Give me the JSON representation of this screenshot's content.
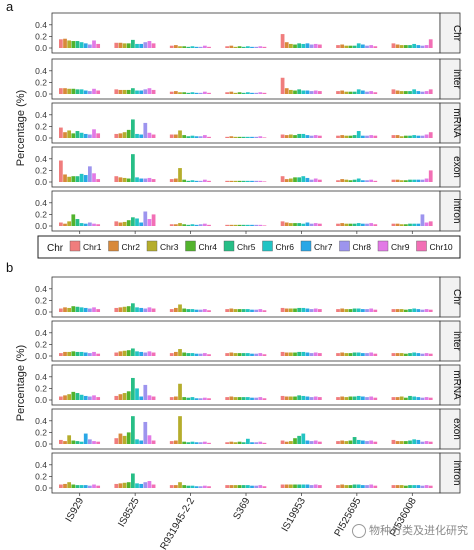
{
  "chart_data": [
    {
      "panel_label": "a",
      "type": "bar",
      "ylabel": "Percentage (%)",
      "yticks": [
        "0.0",
        "0.2",
        "0.4"
      ],
      "ylim": [
        0,
        0.5
      ],
      "categories": [
        "IS929",
        "IS8525",
        "R931945-2-2",
        "S369",
        "IS19953",
        "PI525695",
        "PI536008"
      ],
      "facets": [
        "Chr",
        "inter",
        "mRNA",
        "exon",
        "intron"
      ],
      "series_names": [
        "Chr1",
        "Chr2",
        "Chr3",
        "Chr4",
        "Chr5",
        "Chr6",
        "Chr7",
        "Chr8",
        "Chr9",
        "Chr10"
      ],
      "legend_title": "Chr",
      "legend_position": "bottom",
      "data": {
        "Chr": [
          [
            0.15,
            0.16,
            0.13,
            0.12,
            0.12,
            0.1,
            0.08,
            0.06,
            0.13,
            0.07
          ],
          [
            0.09,
            0.09,
            0.08,
            0.08,
            0.14,
            0.07,
            0.07,
            0.1,
            0.12,
            0.08
          ],
          [
            0.04,
            0.05,
            0.03,
            0.03,
            0.02,
            0.03,
            0.02,
            0.02,
            0.04,
            0.02
          ],
          [
            0.03,
            0.04,
            0.02,
            0.03,
            0.02,
            0.03,
            0.02,
            0.02,
            0.03,
            0.02
          ],
          [
            0.24,
            0.1,
            0.07,
            0.06,
            0.08,
            0.07,
            0.08,
            0.06,
            0.07,
            0.06
          ],
          [
            0.05,
            0.06,
            0.04,
            0.04,
            0.04,
            0.08,
            0.06,
            0.04,
            0.05,
            0.03
          ],
          [
            0.08,
            0.06,
            0.05,
            0.05,
            0.05,
            0.07,
            0.05,
            0.04,
            0.05,
            0.15
          ]
        ],
        "inter": [
          [
            0.1,
            0.1,
            0.09,
            0.09,
            0.08,
            0.08,
            0.06,
            0.05,
            0.09,
            0.06
          ],
          [
            0.08,
            0.07,
            0.07,
            0.07,
            0.1,
            0.06,
            0.06,
            0.08,
            0.1,
            0.07
          ],
          [
            0.04,
            0.05,
            0.03,
            0.03,
            0.02,
            0.03,
            0.02,
            0.02,
            0.04,
            0.02
          ],
          [
            0.03,
            0.04,
            0.02,
            0.03,
            0.02,
            0.03,
            0.02,
            0.02,
            0.03,
            0.02
          ],
          [
            0.28,
            0.1,
            0.07,
            0.06,
            0.08,
            0.06,
            0.06,
            0.05,
            0.06,
            0.05
          ],
          [
            0.05,
            0.06,
            0.04,
            0.04,
            0.04,
            0.08,
            0.06,
            0.04,
            0.05,
            0.03
          ],
          [
            0.08,
            0.06,
            0.05,
            0.05,
            0.05,
            0.08,
            0.05,
            0.04,
            0.05,
            0.08
          ]
        ],
        "mRNA": [
          [
            0.18,
            0.1,
            0.13,
            0.08,
            0.12,
            0.09,
            0.07,
            0.06,
            0.15,
            0.08
          ],
          [
            0.07,
            0.08,
            0.1,
            0.14,
            0.32,
            0.07,
            0.06,
            0.26,
            0.09,
            0.06
          ],
          [
            0.06,
            0.06,
            0.13,
            0.05,
            0.03,
            0.04,
            0.03,
            0.03,
            0.05,
            0.02
          ],
          [
            0.02,
            0.03,
            0.02,
            0.02,
            0.02,
            0.02,
            0.02,
            0.02,
            0.03,
            0.01
          ],
          [
            0.06,
            0.05,
            0.06,
            0.05,
            0.07,
            0.07,
            0.05,
            0.04,
            0.05,
            0.04
          ],
          [
            0.04,
            0.05,
            0.04,
            0.04,
            0.05,
            0.12,
            0.04,
            0.04,
            0.05,
            0.04
          ],
          [
            0.05,
            0.05,
            0.03,
            0.04,
            0.04,
            0.05,
            0.04,
            0.04,
            0.06,
            0.1
          ]
        ],
        "exon": [
          [
            0.37,
            0.13,
            0.09,
            0.1,
            0.1,
            0.14,
            0.12,
            0.27,
            0.15,
            0.05
          ],
          [
            0.1,
            0.08,
            0.07,
            0.06,
            0.48,
            0.08,
            0.06,
            0.06,
            0.07,
            0.05
          ],
          [
            0.05,
            0.06,
            0.24,
            0.04,
            0.02,
            0.03,
            0.02,
            0.02,
            0.04,
            0.02
          ],
          [
            0.02,
            0.02,
            0.02,
            0.02,
            0.02,
            0.02,
            0.02,
            0.02,
            0.02,
            0.01
          ],
          [
            0.1,
            0.05,
            0.06,
            0.08,
            0.08,
            0.1,
            0.07,
            0.04,
            0.06,
            0.04
          ],
          [
            0.03,
            0.05,
            0.04,
            0.03,
            0.04,
            0.06,
            0.03,
            0.03,
            0.04,
            0.02
          ],
          [
            0.04,
            0.04,
            0.03,
            0.03,
            0.04,
            0.04,
            0.04,
            0.04,
            0.06,
            0.2
          ]
        ],
        "intron": [
          [
            0.06,
            0.04,
            0.08,
            0.2,
            0.12,
            0.05,
            0.04,
            0.06,
            0.04,
            0.03
          ],
          [
            0.08,
            0.06,
            0.07,
            0.1,
            0.15,
            0.13,
            0.06,
            0.25,
            0.12,
            0.2
          ],
          [
            0.03,
            0.03,
            0.05,
            0.03,
            0.02,
            0.03,
            0.02,
            0.03,
            0.04,
            0.02
          ],
          [
            0.02,
            0.02,
            0.02,
            0.02,
            0.02,
            0.02,
            0.02,
            0.02,
            0.02,
            0.01
          ],
          [
            0.08,
            0.06,
            0.05,
            0.05,
            0.05,
            0.04,
            0.06,
            0.04,
            0.05,
            0.04
          ],
          [
            0.04,
            0.05,
            0.04,
            0.04,
            0.04,
            0.05,
            0.04,
            0.04,
            0.05,
            0.03
          ],
          [
            0.04,
            0.04,
            0.03,
            0.03,
            0.04,
            0.04,
            0.04,
            0.2,
            0.06,
            0.08
          ]
        ]
      }
    },
    {
      "panel_label": "b",
      "type": "bar",
      "ylabel": "Percentage (%)",
      "yticks": [
        "0.0",
        "0.2",
        "0.4"
      ],
      "ylim": [
        0,
        0.5
      ],
      "categories": [
        "IS929",
        "IS8525",
        "R931945-2-2",
        "S369",
        "IS19953",
        "PI525695",
        "PI536008"
      ],
      "facets": [
        "Chr",
        "inter",
        "mRNA",
        "exon",
        "intron"
      ],
      "series_names": [
        "Chr1",
        "Chr2",
        "Chr3",
        "Chr4",
        "Chr5",
        "Chr6",
        "Chr7",
        "Chr8",
        "Chr9",
        "Chr10"
      ],
      "data": {
        "Chr": [
          [
            0.06,
            0.08,
            0.07,
            0.1,
            0.09,
            0.08,
            0.07,
            0.06,
            0.08,
            0.05
          ],
          [
            0.07,
            0.08,
            0.09,
            0.1,
            0.15,
            0.08,
            0.07,
            0.06,
            0.08,
            0.06
          ],
          [
            0.05,
            0.07,
            0.13,
            0.06,
            0.05,
            0.05,
            0.04,
            0.04,
            0.05,
            0.03
          ],
          [
            0.05,
            0.06,
            0.05,
            0.05,
            0.05,
            0.05,
            0.04,
            0.04,
            0.05,
            0.03
          ],
          [
            0.07,
            0.06,
            0.06,
            0.06,
            0.07,
            0.07,
            0.06,
            0.05,
            0.06,
            0.05
          ],
          [
            0.05,
            0.06,
            0.05,
            0.05,
            0.06,
            0.06,
            0.05,
            0.05,
            0.06,
            0.04
          ],
          [
            0.05,
            0.05,
            0.05,
            0.04,
            0.05,
            0.06,
            0.05,
            0.04,
            0.05,
            0.04
          ]
        ],
        "inter": [
          [
            0.05,
            0.07,
            0.07,
            0.08,
            0.07,
            0.07,
            0.06,
            0.05,
            0.07,
            0.04
          ],
          [
            0.06,
            0.08,
            0.09,
            0.1,
            0.13,
            0.08,
            0.07,
            0.06,
            0.08,
            0.06
          ],
          [
            0.05,
            0.07,
            0.12,
            0.06,
            0.05,
            0.05,
            0.04,
            0.04,
            0.05,
            0.03
          ],
          [
            0.05,
            0.06,
            0.05,
            0.05,
            0.05,
            0.05,
            0.04,
            0.04,
            0.05,
            0.03
          ],
          [
            0.07,
            0.06,
            0.06,
            0.06,
            0.07,
            0.07,
            0.06,
            0.05,
            0.06,
            0.05
          ],
          [
            0.05,
            0.06,
            0.05,
            0.05,
            0.06,
            0.06,
            0.05,
            0.05,
            0.06,
            0.04
          ],
          [
            0.05,
            0.05,
            0.05,
            0.04,
            0.05,
            0.06,
            0.05,
            0.04,
            0.05,
            0.04
          ]
        ],
        "mRNA": [
          [
            0.06,
            0.08,
            0.1,
            0.14,
            0.12,
            0.09,
            0.07,
            0.06,
            0.08,
            0.05
          ],
          [
            0.07,
            0.1,
            0.12,
            0.15,
            0.38,
            0.2,
            0.06,
            0.26,
            0.08,
            0.06
          ],
          [
            0.05,
            0.06,
            0.28,
            0.05,
            0.04,
            0.05,
            0.03,
            0.03,
            0.04,
            0.03
          ],
          [
            0.05,
            0.06,
            0.05,
            0.05,
            0.05,
            0.05,
            0.04,
            0.04,
            0.05,
            0.03
          ],
          [
            0.07,
            0.06,
            0.06,
            0.06,
            0.08,
            0.07,
            0.06,
            0.05,
            0.06,
            0.05
          ],
          [
            0.05,
            0.06,
            0.05,
            0.06,
            0.06,
            0.07,
            0.06,
            0.05,
            0.06,
            0.04
          ],
          [
            0.05,
            0.05,
            0.06,
            0.04,
            0.07,
            0.06,
            0.05,
            0.04,
            0.05,
            0.04
          ]
        ],
        "exon": [
          [
            0.07,
            0.05,
            0.15,
            0.06,
            0.05,
            0.04,
            0.18,
            0.08,
            0.05,
            0.04
          ],
          [
            0.1,
            0.18,
            0.14,
            0.2,
            0.48,
            0.08,
            0.06,
            0.38,
            0.15,
            0.06
          ],
          [
            0.05,
            0.06,
            0.48,
            0.04,
            0.03,
            0.04,
            0.03,
            0.03,
            0.04,
            0.02
          ],
          [
            0.03,
            0.04,
            0.03,
            0.04,
            0.03,
            0.09,
            0.03,
            0.03,
            0.04,
            0.02
          ],
          [
            0.06,
            0.04,
            0.05,
            0.1,
            0.14,
            0.18,
            0.06,
            0.05,
            0.06,
            0.04
          ],
          [
            0.05,
            0.06,
            0.05,
            0.06,
            0.12,
            0.07,
            0.06,
            0.05,
            0.06,
            0.04
          ],
          [
            0.07,
            0.05,
            0.05,
            0.05,
            0.06,
            0.08,
            0.07,
            0.04,
            0.05,
            0.04
          ]
        ],
        "intron": [
          [
            0.06,
            0.07,
            0.1,
            0.06,
            0.05,
            0.05,
            0.05,
            0.04,
            0.06,
            0.04
          ],
          [
            0.07,
            0.08,
            0.09,
            0.1,
            0.25,
            0.08,
            0.07,
            0.1,
            0.12,
            0.06
          ],
          [
            0.05,
            0.05,
            0.1,
            0.05,
            0.04,
            0.04,
            0.03,
            0.03,
            0.04,
            0.03
          ],
          [
            0.05,
            0.05,
            0.05,
            0.05,
            0.05,
            0.05,
            0.04,
            0.04,
            0.05,
            0.03
          ],
          [
            0.06,
            0.06,
            0.06,
            0.06,
            0.06,
            0.06,
            0.06,
            0.05,
            0.06,
            0.05
          ],
          [
            0.05,
            0.06,
            0.05,
            0.05,
            0.06,
            0.06,
            0.05,
            0.05,
            0.06,
            0.04
          ],
          [
            0.05,
            0.05,
            0.05,
            0.04,
            0.05,
            0.05,
            0.05,
            0.04,
            0.05,
            0.04
          ]
        ]
      }
    }
  ],
  "colors": [
    "#f07d7d",
    "#d8893a",
    "#b5ad2c",
    "#52b32d",
    "#27be86",
    "#22c4c4",
    "#2aa7e6",
    "#9d94ee",
    "#e27ae6",
    "#f26fb5"
  ],
  "watermark": {
    "text": "物种分类及进化研究",
    "icon": "wechat-icon"
  }
}
